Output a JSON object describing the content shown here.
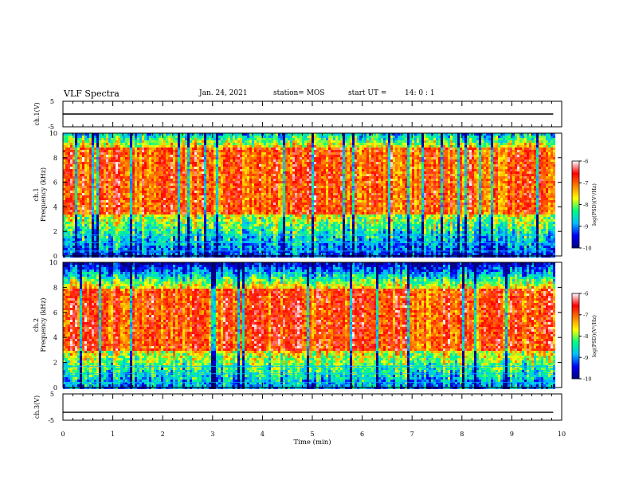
{
  "header": {
    "title": "VLF Spectra",
    "date": "Jan. 24, 2021",
    "station": "station= MOS",
    "start_label": "start UT =",
    "start_time": "14: 0 : 1"
  },
  "chart_data": [
    {
      "type": "line",
      "title": "",
      "ylabel": "ch.1(V)",
      "ylim": [
        -5,
        5
      ],
      "yticks": [
        "5",
        "-5"
      ],
      "series": [
        {
          "values_note": "",
          "x": [
            0,
            9.83
          ],
          "y": [
            0,
            0
          ]
        }
      ]
    },
    {
      "type": "heatmap",
      "ylabel_line1": "ch.1",
      "ylabel_line2": "Frequency (kHz)",
      "ylim": [
        0,
        10
      ],
      "yticks": [
        "0",
        "2",
        "4",
        "6",
        "8",
        "10"
      ],
      "xlim": [
        0,
        9.83
      ],
      "intense_band_khz": [
        3.5,
        9.0
      ],
      "colorbar": {
        "label": "log(PSD)(V²/Hz)",
        "range": [
          -10,
          -6
        ],
        "ticks": [
          "-6",
          "-7",
          "-8",
          "-9",
          "-10"
        ],
        "colors": [
          "#000080",
          "#0000ff",
          "#00c0ff",
          "#00ff80",
          "#ffff00",
          "#ff8000",
          "#ff0000",
          "#ffffff"
        ]
      }
    },
    {
      "type": "heatmap",
      "ylabel_line1": "ch.2",
      "ylabel_line2": "Frequency (kHz)",
      "ylim": [
        0,
        10
      ],
      "yticks": [
        "0",
        "2",
        "4",
        "6",
        "8",
        "10"
      ],
      "xlim": [
        0,
        9.83
      ],
      "intense_band_khz": [
        3.0,
        8.0
      ],
      "colorbar": {
        "label": "log(PSD)(V²/Hz)",
        "range": [
          -10,
          -6
        ],
        "ticks": [
          "-6",
          "-7",
          "-8",
          "-9",
          "-10"
        ],
        "colors": [
          "#000080",
          "#0000ff",
          "#00c0ff",
          "#00ff80",
          "#ffff00",
          "#ff8000",
          "#ff0000",
          "#ffffff"
        ]
      }
    },
    {
      "type": "line",
      "ylabel": "ch.3(V)",
      "ylim": [
        -5,
        5
      ],
      "yticks": [
        "5",
        "-5"
      ],
      "series": [
        {
          "x": [
            0,
            9.83
          ],
          "y": [
            -2,
            -2
          ]
        }
      ]
    }
  ],
  "xaxis": {
    "label": "Time (min)",
    "range": [
      0,
      10
    ],
    "ticks": [
      "0",
      "1",
      "2",
      "3",
      "4",
      "5",
      "6",
      "7",
      "8",
      "9",
      "10"
    ]
  }
}
